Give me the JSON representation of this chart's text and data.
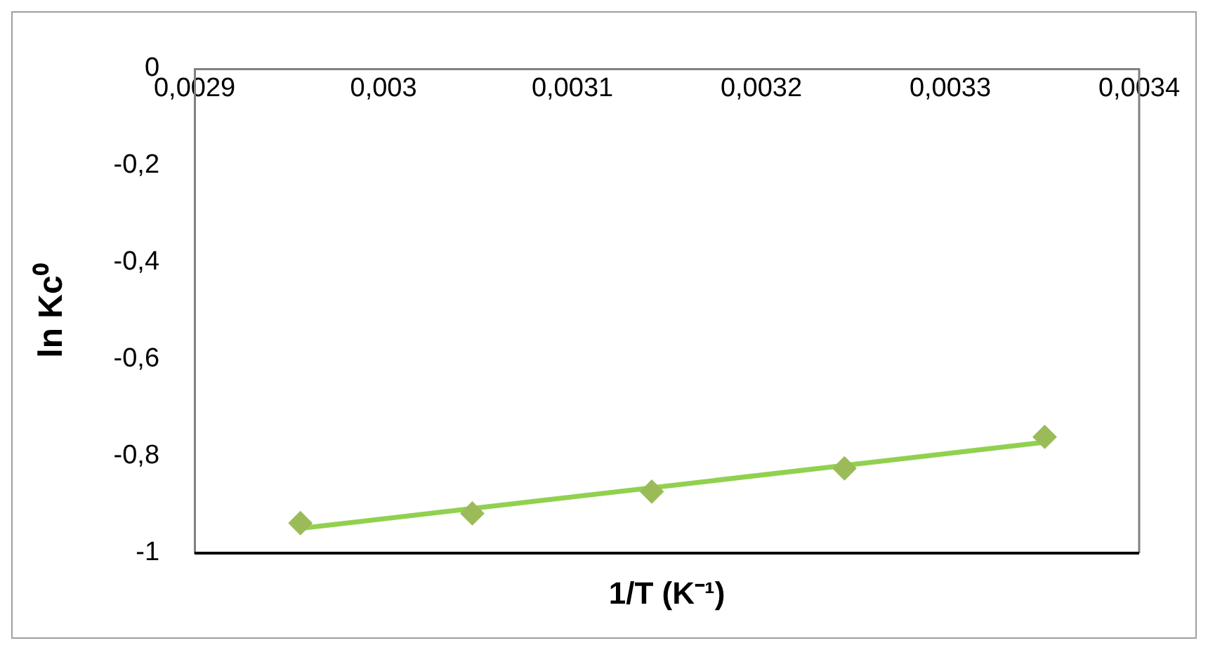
{
  "chart_data": {
    "type": "scatter",
    "xlabel": "1/T (K⁻¹)",
    "ylabel": "ln Kc⁰",
    "xlim": [
      0.0029,
      0.0034
    ],
    "ylim": [
      -1,
      0
    ],
    "xticks": [
      {
        "value": 0.0029,
        "label": "0,0029"
      },
      {
        "value": 0.003,
        "label": "0,003"
      },
      {
        "value": 0.0031,
        "label": "0,0031"
      },
      {
        "value": 0.0032,
        "label": "0,0032"
      },
      {
        "value": 0.0033,
        "label": "0,0033"
      },
      {
        "value": 0.0034,
        "label": "0,0034"
      }
    ],
    "yticks": [
      0,
      {
        "value": -0.2,
        "label": "-0,2"
      },
      {
        "value": -0.4,
        "label": "-0,4"
      },
      {
        "value": -0.6,
        "label": "-0,6"
      },
      {
        "value": -0.8,
        "label": "-0,8"
      },
      -1
    ],
    "grid": false,
    "legend": false,
    "series": [
      {
        "type": "line",
        "color": "#92d050",
        "marker": "none",
        "line_style": "solid",
        "x": [
          0.002956,
          0.00335
        ],
        "values": [
          -0.949,
          -0.771
        ]
      },
      {
        "color": "#9bbb59",
        "marker": "diamond",
        "x": [
          0.002956,
          0.003047,
          0.003142,
          0.003244,
          0.00335
        ],
        "values": [
          -0.938,
          -0.918,
          -0.873,
          -0.825,
          -0.76
        ]
      }
    ]
  }
}
